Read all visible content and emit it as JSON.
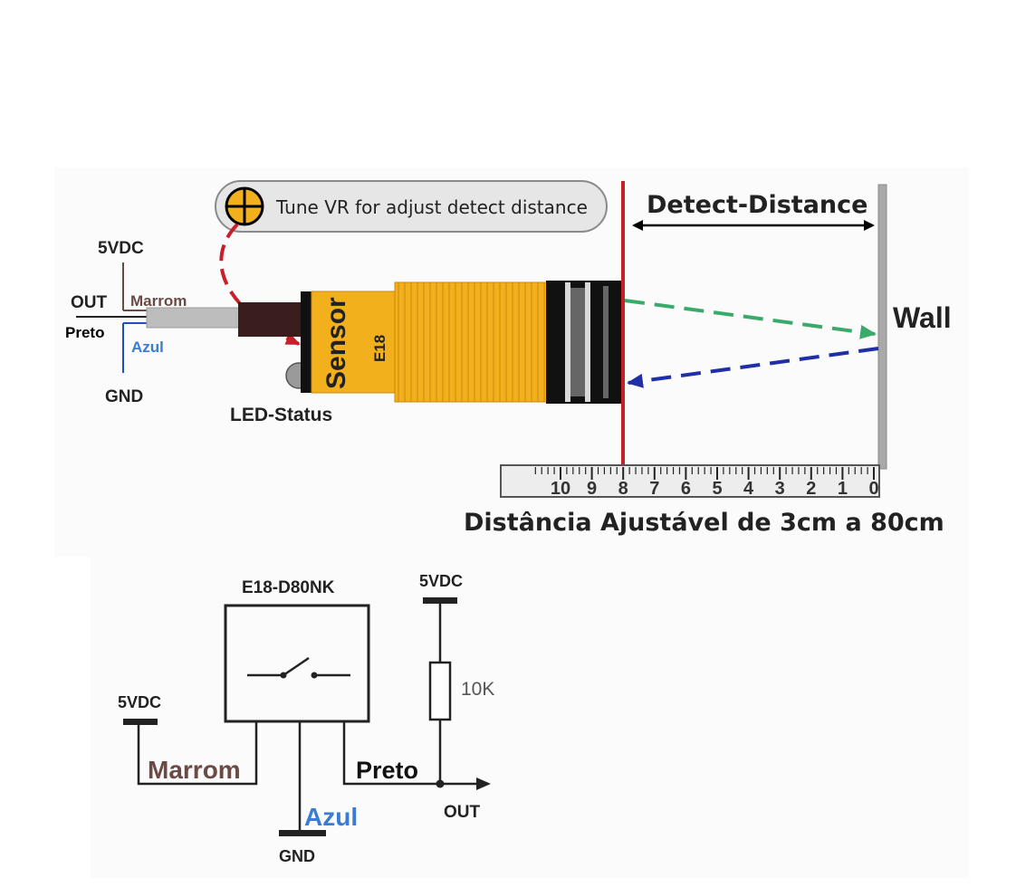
{
  "top": {
    "tune_note": "Tune VR for adjust detect distance",
    "detect_distance": "Detect-Distance",
    "wall": "Wall",
    "led_status": "LED-Status",
    "sensor_word": "Sensor",
    "sensor_model": "E18",
    "wires": {
      "vdc": "5VDC",
      "out": "OUT",
      "marrom": "Marrom",
      "preto": "Preto",
      "azul": "Azul",
      "gnd": "GND"
    },
    "ruler_numbers": [
      "10",
      "9",
      "8",
      "7",
      "6",
      "5",
      "4",
      "3",
      "2",
      "1",
      "0"
    ],
    "caption": "Distância Ajustável de 3cm a 80cm"
  },
  "schematic": {
    "module": "E18-D80NK",
    "vdc_left": "5VDC",
    "vdc_right": "5VDC",
    "resistor": "10K",
    "marrom": "Marrom",
    "preto": "Preto",
    "azul": "Azul",
    "out": "OUT",
    "gnd": "GND"
  },
  "colors": {
    "brown": "#6b4a45",
    "blue": "#3a7bd5",
    "sensor_yellow": "#f3b01d",
    "red_line": "#c8202a",
    "green_arrow": "#3aaa6a",
    "blue_arrow": "#1f2fa8",
    "dark_red_arc": "#c8202a"
  }
}
